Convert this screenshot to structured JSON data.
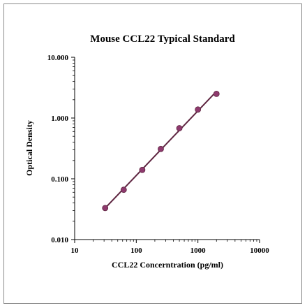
{
  "chart_data": {
    "type": "scatter",
    "title": "Mouse CCL22 Typical Standard",
    "xlabel": "CCL22 Concerntration (pg/ml)",
    "ylabel": "Optical Density",
    "xscale": "log",
    "yscale": "log",
    "xlim": [
      10,
      10000
    ],
    "ylim": [
      0.01,
      10
    ],
    "xticks": [
      "10",
      "100",
      "1000",
      "10000"
    ],
    "yticks": [
      "0.010",
      "0.100",
      "1.000",
      "10.000"
    ],
    "grid": false,
    "legend": "none",
    "fit_line": true,
    "colors": {
      "marker": "#8e3a6e",
      "line": "#5e2540",
      "axis": "#000000"
    },
    "series": [
      {
        "x": [
          31.25,
          62.5,
          125,
          250,
          500,
          1000,
          2000
        ],
        "y": [
          0.033,
          0.066,
          0.14,
          0.31,
          0.68,
          1.38,
          2.5
        ]
      }
    ]
  }
}
